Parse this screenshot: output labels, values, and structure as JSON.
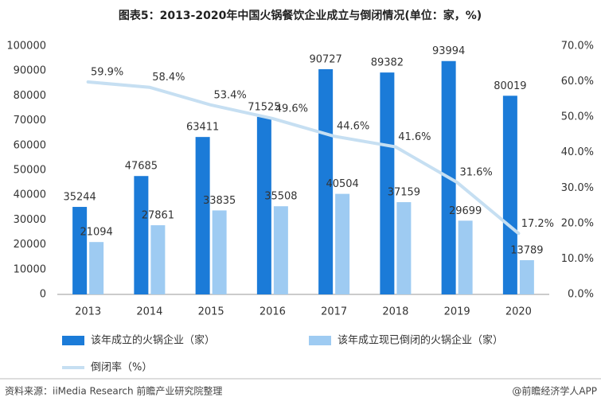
{
  "chart_data": {
    "type": "bar-line",
    "title": "图表5：2013-2020年中国火锅餐饮企业成立与倒闭情况(单位：家，%)",
    "categories": [
      "2013",
      "2014",
      "2015",
      "2016",
      "2017",
      "2018",
      "2019",
      "2020"
    ],
    "series": [
      {
        "name": "该年成立的火锅企业（家）",
        "color": "#1b7bd8",
        "values": [
          35244,
          47685,
          63411,
          71525,
          90727,
          89382,
          93994,
          80019
        ]
      },
      {
        "name": "该年成立现已倒闭的火锅企业（家）",
        "color": "#9ecbf2",
        "values": [
          21094,
          27861,
          33835,
          35508,
          40504,
          37159,
          29699,
          13789
        ]
      },
      {
        "name": "倒闭率（%）",
        "color": "#c6dff2",
        "axis": "y2",
        "values": [
          59.9,
          58.4,
          53.4,
          49.6,
          44.6,
          41.6,
          31.6,
          17.2
        ],
        "value_labels": [
          "59.9%",
          "58.4%",
          "53.4%",
          "49.6%",
          "44.6%",
          "41.6%",
          "31.6%",
          "17.2%"
        ]
      }
    ],
    "ylim": [
      0,
      100000
    ],
    "yticks": [
      0,
      10000,
      20000,
      30000,
      40000,
      50000,
      60000,
      70000,
      80000,
      90000,
      100000
    ],
    "y2lim": [
      0,
      70
    ],
    "y2ticks": [
      {
        "value": 0,
        "label": "0.0%"
      },
      {
        "value": 10,
        "label": "10.0%"
      },
      {
        "value": 20,
        "label": "20.0%"
      },
      {
        "value": 30,
        "label": "30.0%"
      },
      {
        "value": 40,
        "label": "40.0%"
      },
      {
        "value": 50,
        "label": "50.0%"
      },
      {
        "value": 60,
        "label": "60.0%"
      },
      {
        "value": 70,
        "label": "70.0%"
      }
    ],
    "source": "资料来源：iiMedia Research 前瞻产业研究院整理",
    "credit": "@前瞻经济学人APP"
  }
}
